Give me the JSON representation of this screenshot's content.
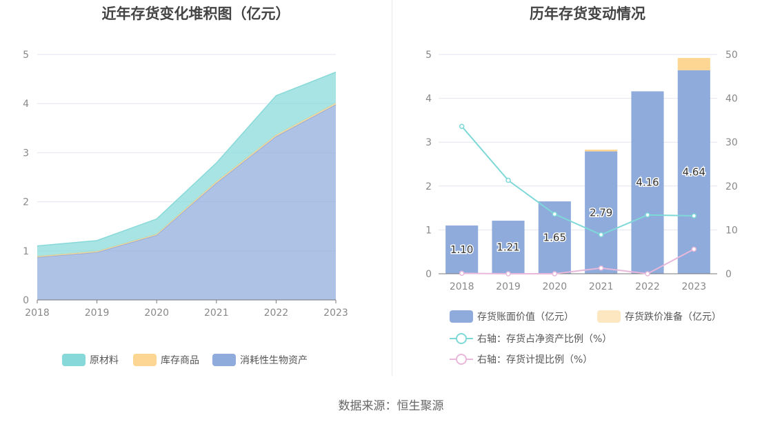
{
  "source_text": "数据来源：恒生聚源",
  "colors": {
    "raw": "#87d9d9",
    "goods": "#fdd693",
    "bio": "#8fabdc",
    "book": "#8fabdc",
    "reserve": "#fde7c0",
    "ratio_line": "#7fd8d8",
    "provision_line": "#e8b7da",
    "grid": "#e3e6f0"
  },
  "chart_data": [
    {
      "type": "area",
      "stacked": true,
      "title": "近年存货变化堆积图（亿元）",
      "x": [
        "2018",
        "2019",
        "2020",
        "2021",
        "2022",
        "2023"
      ],
      "ylim": [
        0,
        5
      ],
      "yticks": [
        "0",
        "1",
        "2",
        "3",
        "4",
        "5"
      ],
      "series": [
        {
          "name": "消耗性生物资产",
          "color_key": "bio",
          "values": [
            0.87,
            0.97,
            1.32,
            2.38,
            3.33,
            3.98
          ]
        },
        {
          "name": "库存商品",
          "color_key": "goods",
          "values": [
            0.02,
            0.02,
            0.02,
            0.03,
            0.03,
            0.03
          ]
        },
        {
          "name": "原材料",
          "color_key": "raw",
          "values": [
            0.21,
            0.22,
            0.31,
            0.38,
            0.8,
            0.63
          ]
        }
      ],
      "legend_order": [
        "原材料",
        "库存商品",
        "消耗性生物资产"
      ],
      "legend": "bottom",
      "grid": true
    },
    {
      "type": "bar",
      "title": "历年存货变动情况",
      "categories": [
        "2018",
        "2019",
        "2020",
        "2021",
        "2022",
        "2023"
      ],
      "ylim": [
        0,
        5
      ],
      "yticks": [
        "0",
        "1",
        "2",
        "3",
        "4",
        "5"
      ],
      "y2lim": [
        0,
        50
      ],
      "y2ticks": [
        "0",
        "10",
        "20",
        "30",
        "40",
        "50"
      ],
      "bar_series": [
        {
          "name": "存货账面价值（亿元）",
          "color_key": "book",
          "values": [
            1.1,
            1.21,
            1.65,
            2.79,
            4.16,
            4.64
          ],
          "labels": [
            "1.10",
            "1.21",
            "1.65",
            "2.79",
            "4.16",
            "4.64"
          ]
        },
        {
          "name": "存货跌价准备（亿元）",
          "color_key": "reserve",
          "values": [
            0,
            0,
            0,
            0.04,
            0,
            0.28
          ]
        }
      ],
      "line_series": [
        {
          "name": "右轴：存货占净资产比例（%）",
          "color_key": "ratio_line",
          "values": [
            33.6,
            21.3,
            13.6,
            8.9,
            13.4,
            13.2
          ]
        },
        {
          "name": "右轴：存货计提比例（%）",
          "color_key": "provision_line",
          "values": [
            0.1,
            0.0,
            0.0,
            1.3,
            0.0,
            5.6
          ]
        }
      ],
      "legend": "bottom",
      "grid": true
    }
  ]
}
